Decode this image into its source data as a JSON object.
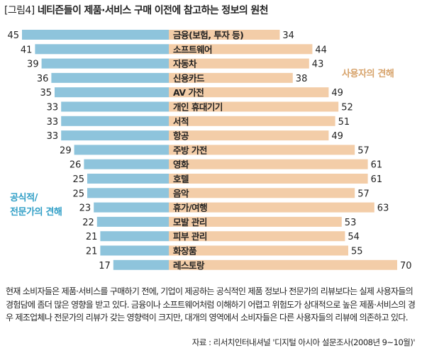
{
  "title": {
    "tag": "[그림4]",
    "text": "네티즌들이 제품·서비스 구매 이전에 참고하는 정보의 원천"
  },
  "legend": {
    "expert_line1": "공식적/",
    "expert_line2": "전문가의 견해",
    "user": "사용자의 견해"
  },
  "colors": {
    "expert": "#8ec4dc",
    "user": "#f3cda8",
    "expert_text": "#2f9ec6",
    "user_text": "#d7a36b"
  },
  "chart_data": {
    "type": "bar",
    "categories": [
      "금융(보험, 투자 등)",
      "소프트웨어",
      "자동차",
      "신용카드",
      "AV 가전",
      "개인 휴대기기",
      "서적",
      "항공",
      "주방 가전",
      "영화",
      "호텔",
      "음악",
      "휴가/여행",
      "모발 관리",
      "피부 관리",
      "화장품",
      "레스토랑"
    ],
    "series": [
      {
        "name": "공식적/전문가의 견해",
        "values": [
          45,
          41,
          39,
          36,
          35,
          33,
          33,
          33,
          29,
          26,
          25,
          25,
          23,
          22,
          21,
          21,
          17
        ]
      },
      {
        "name": "사용자의 견해",
        "values": [
          34,
          44,
          43,
          38,
          49,
          52,
          51,
          49,
          57,
          61,
          61,
          57,
          63,
          53,
          54,
          55,
          70
        ]
      }
    ]
  },
  "description": "현재 소비자들은 제품·서비스를 구매하기 전에, 기업이 제공하는 공식적인 제품 정보나 전문가의 리뷰보다는 실제 사용자들의 경험담에 좀더 많은 영향을 받고 있다. 금융이나 소프트웨어처럼 이해하기 어렵고 위험도가 상대적으로 높은 제품·서비스의 경우 제조업체나 전문가의 리뷰가 갖는 영향력이 크지만, 대개의 영역에서 소비자들은 다른 사용자들의 리뷰에 의존하고 있다.",
  "source": "자료 : 리서치인터내셔널 '디지털 아시아 설문조사(2008년 9~10월)'"
}
